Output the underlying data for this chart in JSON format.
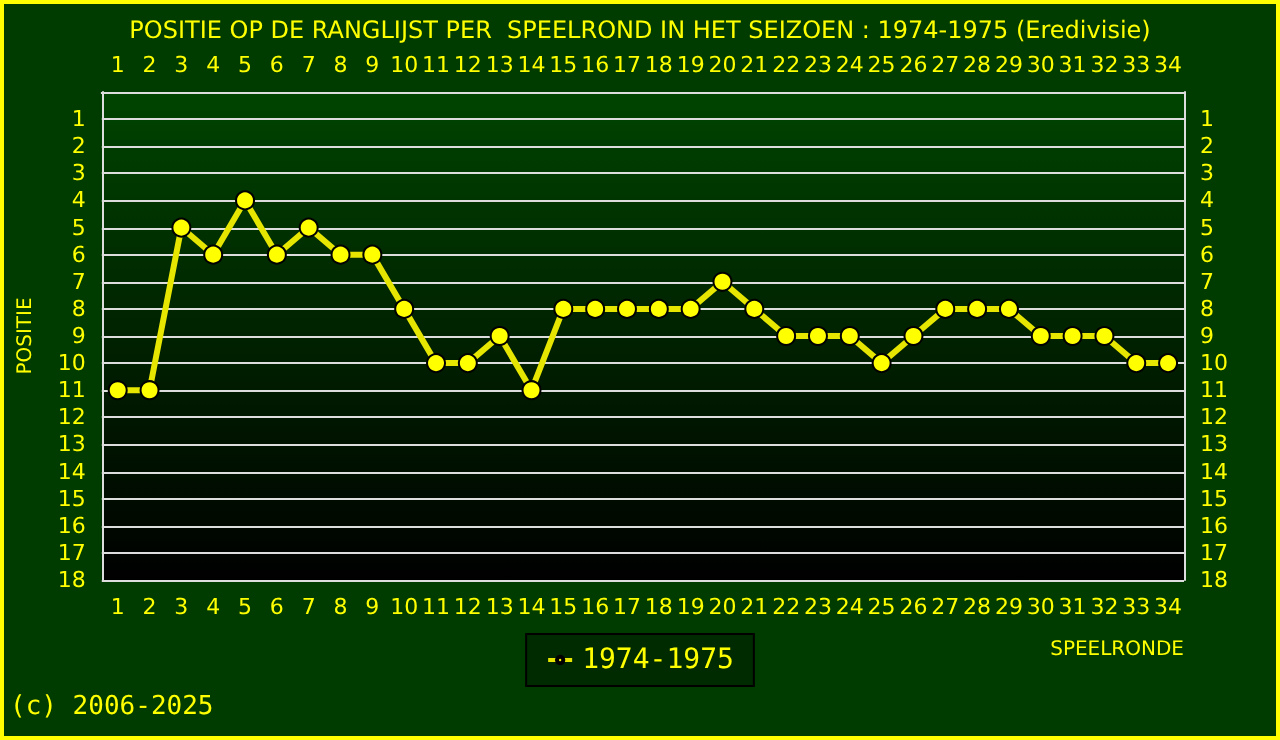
{
  "chart_data": {
    "type": "line",
    "title": "POSITIE OP DE RANGLIJST PER  SPEELROND IN HET SEIZOEN : 1974-1975 (Eredivisie)",
    "xlabel": "SPEELRONDE",
    "ylabel": "POSITIE",
    "x": [
      1,
      2,
      3,
      4,
      5,
      6,
      7,
      8,
      9,
      10,
      11,
      12,
      13,
      14,
      15,
      16,
      17,
      18,
      19,
      20,
      21,
      22,
      23,
      24,
      25,
      26,
      27,
      28,
      29,
      30,
      31,
      32,
      33,
      34
    ],
    "series": [
      {
        "name": "1974-1975",
        "color": "#e6e600",
        "values": [
          11,
          11,
          5,
          6,
          4,
          6,
          5,
          6,
          6,
          8,
          10,
          10,
          9,
          11,
          8,
          8,
          8,
          8,
          8,
          7,
          8,
          9,
          9,
          9,
          10,
          9,
          8,
          8,
          8,
          9,
          9,
          9,
          10,
          10
        ]
      }
    ],
    "xlim": [
      0.5,
      34.5
    ],
    "xticks": [
      1,
      2,
      3,
      4,
      5,
      6,
      7,
      8,
      9,
      10,
      11,
      12,
      13,
      14,
      15,
      16,
      17,
      18,
      19,
      20,
      21,
      22,
      23,
      24,
      25,
      26,
      27,
      28,
      29,
      30,
      31,
      32,
      33,
      34
    ],
    "x2lim": [
      0.5,
      34.5
    ],
    "x2ticks": [
      1,
      2,
      3,
      4,
      5,
      6,
      7,
      8,
      9,
      10,
      11,
      12,
      13,
      14,
      15,
      16,
      17,
      18,
      19,
      20,
      21,
      22,
      23,
      24,
      25,
      26,
      27,
      28,
      29,
      30,
      31,
      32,
      33,
      34
    ],
    "ylim": [
      18,
      0
    ],
    "yticks": [
      1,
      2,
      3,
      4,
      5,
      6,
      7,
      8,
      9,
      10,
      11,
      12,
      13,
      14,
      15,
      16,
      17,
      18
    ],
    "y2lim": [
      18,
      0
    ],
    "y2ticks": [
      1,
      2,
      3,
      4,
      5,
      6,
      7,
      8,
      9,
      10,
      11,
      12,
      13,
      14,
      15,
      16,
      17,
      18
    ],
    "grid": "y",
    "legend": "bottom",
    "marker": "circle",
    "line_style": "solid",
    "annotations": [
      "(c) 2006-2025"
    ]
  }
}
